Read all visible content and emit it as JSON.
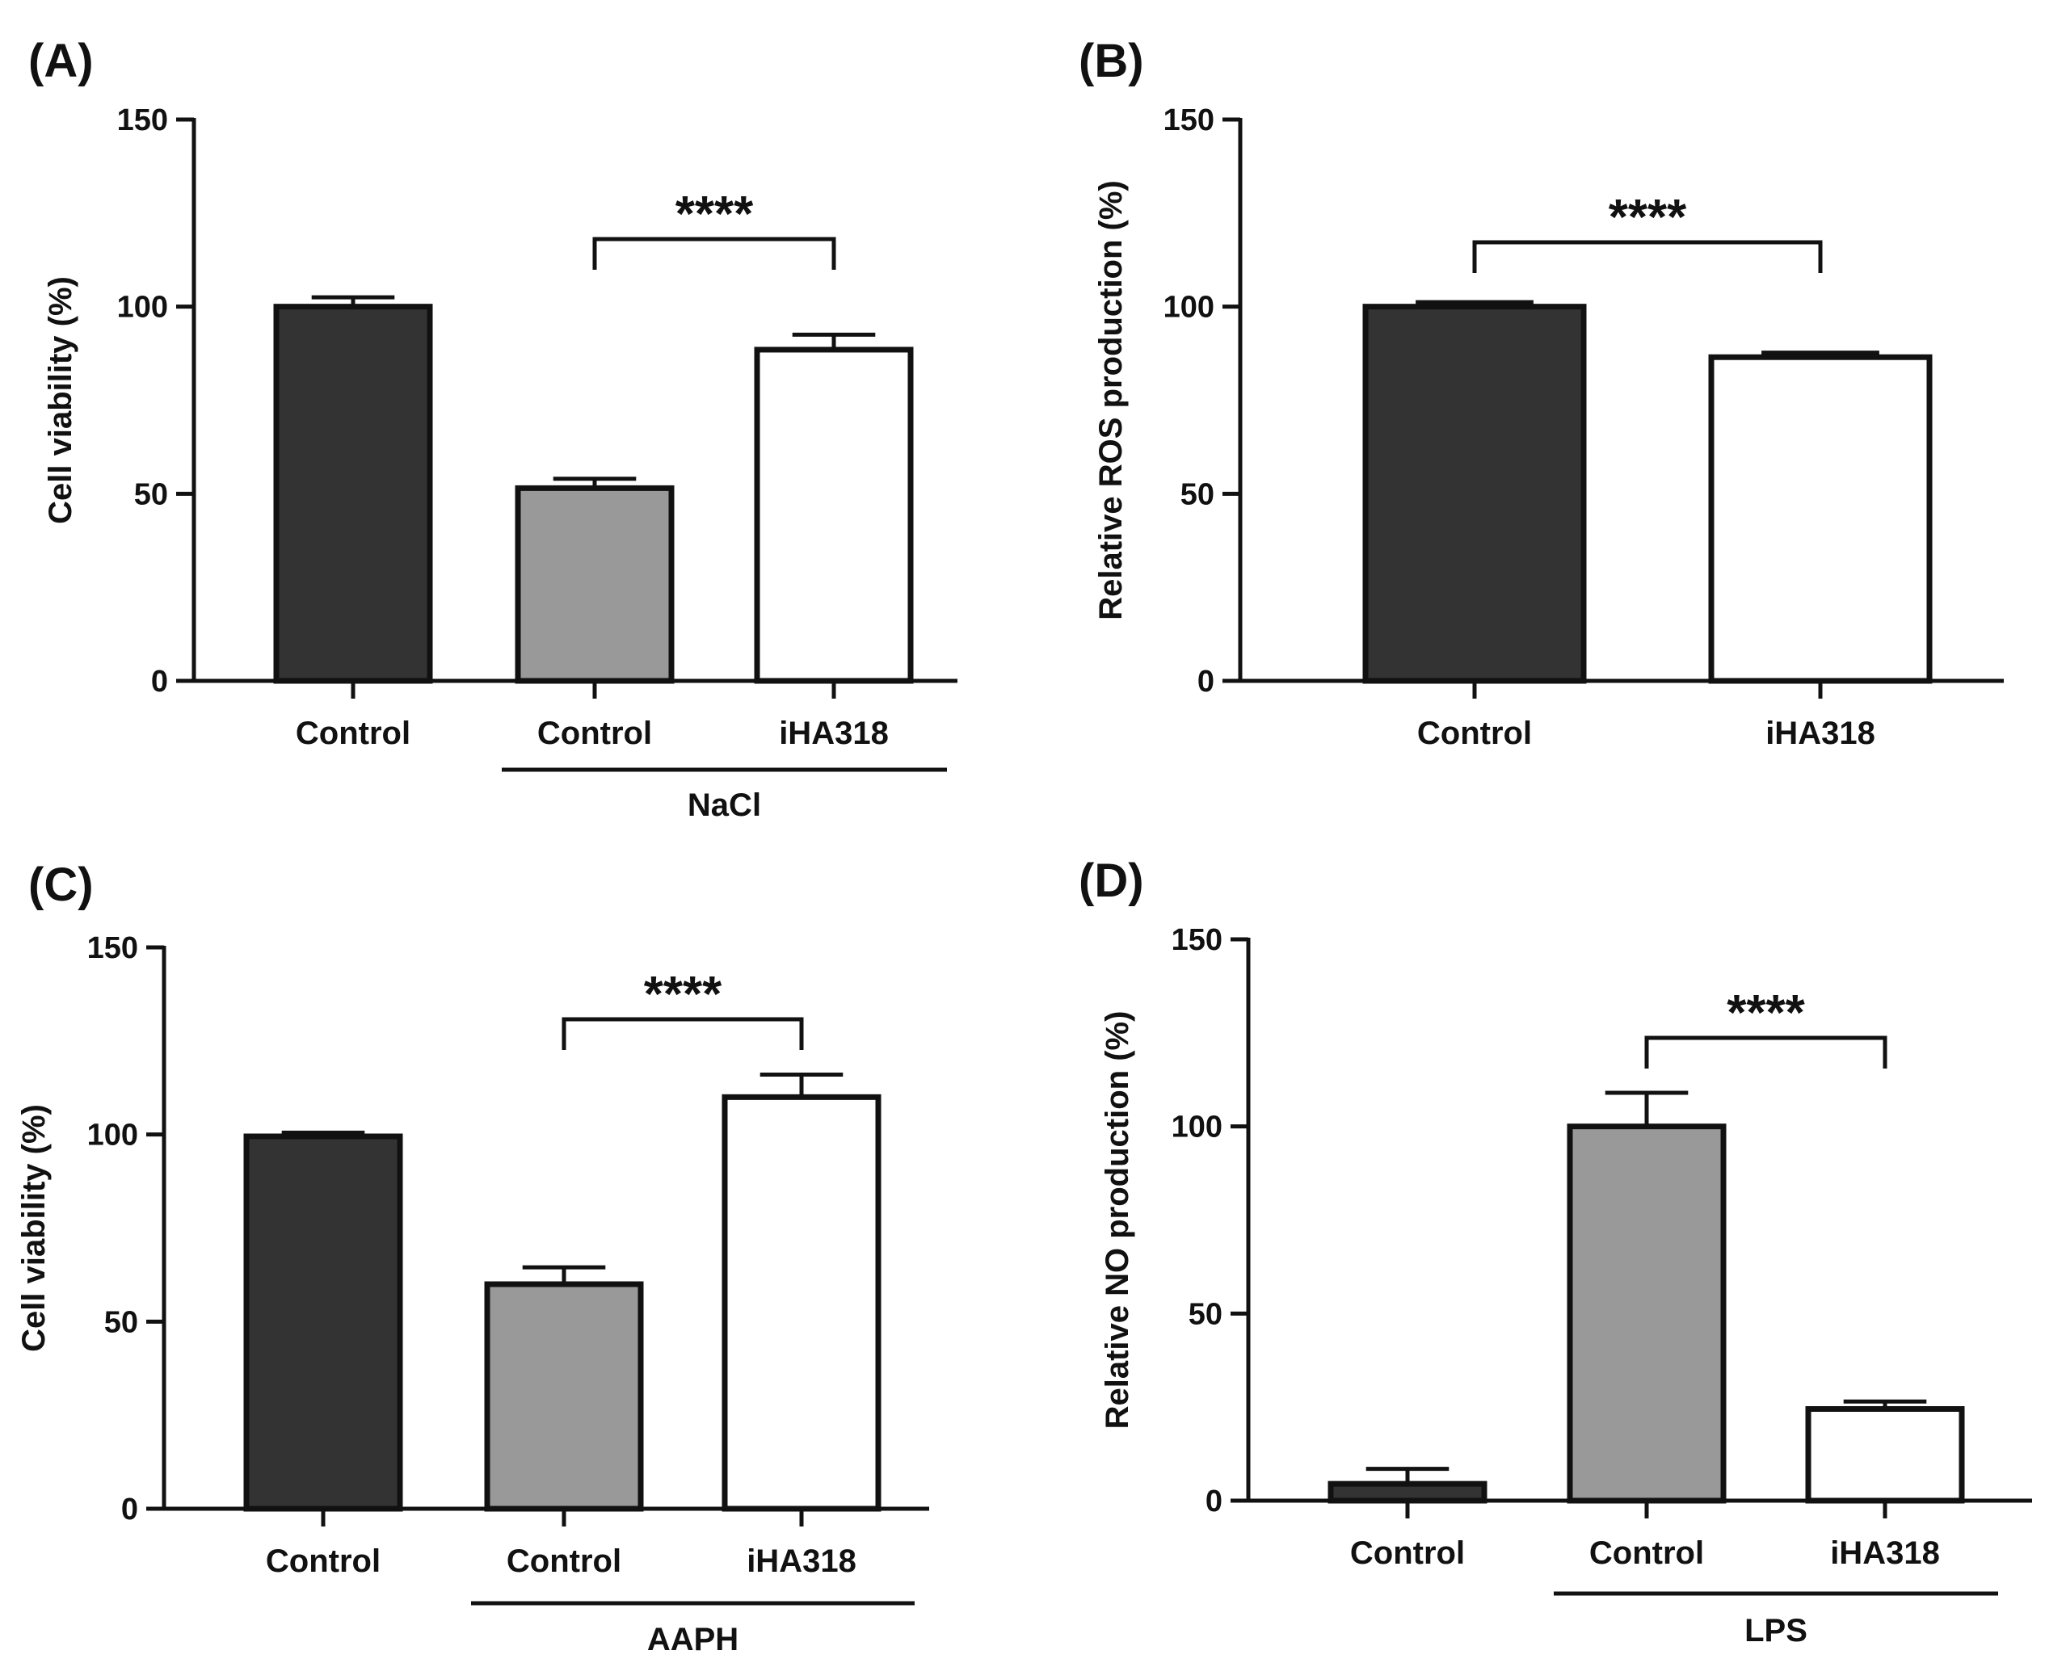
{
  "chart_data": [
    {
      "panel": "(A)",
      "type": "bar",
      "ylabel": "Cell viability (%)",
      "ylim": [
        0,
        150
      ],
      "yticks": [
        0,
        50,
        100,
        150
      ],
      "categories": [
        "Control",
        "Control",
        "iHA318"
      ],
      "values": [
        100,
        51.5,
        88.5
      ],
      "errors": [
        2.5,
        2.5,
        4
      ],
      "bar_colors": [
        "#333333",
        "#999999",
        "#ffffff"
      ],
      "group_label": "NaCl",
      "group_span": [
        1,
        2
      ],
      "significance": {
        "from": 1,
        "to": 2,
        "label": "****"
      }
    },
    {
      "panel": "(B)",
      "type": "bar",
      "ylabel": "Relative ROS production (%)",
      "ylim": [
        0,
        150
      ],
      "yticks": [
        0,
        50,
        100,
        150
      ],
      "categories": [
        "Control",
        "iHA318"
      ],
      "values": [
        100,
        86.5
      ],
      "errors": [
        1.2,
        1.2
      ],
      "bar_colors": [
        "#333333",
        "#ffffff"
      ],
      "group_label": "",
      "significance": {
        "from": 0,
        "to": 1,
        "label": "****"
      }
    },
    {
      "panel": "(C)",
      "type": "bar",
      "ylabel": "Cell viability (%)",
      "ylim": [
        0,
        150
      ],
      "yticks": [
        0,
        50,
        100,
        150
      ],
      "categories": [
        "Control",
        "Control",
        "iHA318"
      ],
      "values": [
        99.5,
        60,
        110
      ],
      "errors": [
        1,
        4.5,
        6
      ],
      "bar_colors": [
        "#333333",
        "#999999",
        "#ffffff"
      ],
      "group_label": "AAPH",
      "group_span": [
        1,
        2
      ],
      "significance": {
        "from": 1,
        "to": 2,
        "label": "****"
      }
    },
    {
      "panel": "(D)",
      "type": "bar",
      "ylabel": "Relative NO production (%)",
      "ylim": [
        0,
        150
      ],
      "yticks": [
        0,
        50,
        100,
        150
      ],
      "categories": [
        "Control",
        "Control",
        "iHA318"
      ],
      "values": [
        4.5,
        100,
        24.5
      ],
      "errors": [
        4,
        9,
        2
      ],
      "bar_colors": [
        "#333333",
        "#999999",
        "#ffffff"
      ],
      "group_label": "LPS",
      "group_span": [
        1,
        2
      ],
      "significance": {
        "from": 1,
        "to": 2,
        "label": "****"
      }
    }
  ]
}
